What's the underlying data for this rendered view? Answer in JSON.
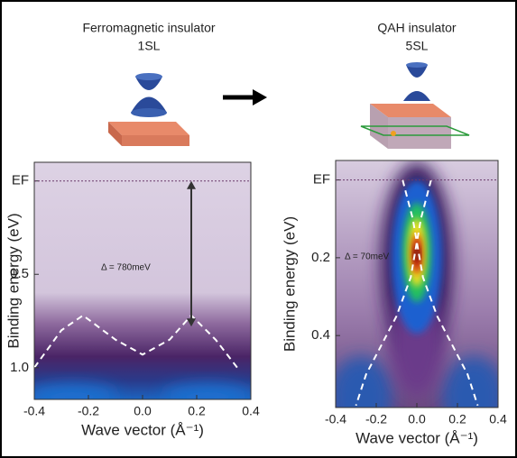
{
  "chart_data": [
    {
      "type": "arpes",
      "title": "Ferromagnetic insulator",
      "subtitle": "1SL",
      "xlabel": "Wave vector (Å⁻¹)",
      "ylabel": "Binding energy (eV)",
      "xlim": [
        -0.4,
        0.4
      ],
      "xticks": [
        -0.4,
        -0.2,
        {
          "value": 0,
          "label": "0.0"
        },
        0.2,
        0.4
      ],
      "ylim": [
        -0.1,
        1.17
      ],
      "y_inverted": true,
      "yticks": [
        {
          "value": 0,
          "label": "EF"
        },
        0.5,
        {
          "value": 1,
          "label": "1.0"
        }
      ],
      "annotation": "Δ = 780meV",
      "gap_arrow": {
        "x": 0.18,
        "y": [
          0,
          0.78
        ]
      },
      "series": [
        {
          "color": "#ffffff",
          "x": [
            -0.4,
            -0.3,
            -0.22,
            -0.1,
            0,
            0.1,
            0.18,
            0.27,
            0.35
          ],
          "values": [
            1.0,
            0.8,
            0.72,
            0.85,
            0.93,
            0.85,
            0.72,
            0.85,
            1.0
          ]
        }
      ]
    },
    {
      "type": "arpes",
      "title": "QAH insulator",
      "subtitle": "5SL",
      "xlabel": "Wave vector (Å⁻¹)",
      "ylabel": "Binding energy (eV)",
      "xlim": [
        -0.4,
        0.4
      ],
      "xticks": [
        -0.4,
        -0.2,
        {
          "value": 0,
          "label": "0.0"
        },
        0.2,
        0.4
      ],
      "ylim": [
        -0.05,
        0.585
      ],
      "y_inverted": true,
      "yticks": [
        {
          "value": 0,
          "label": "EF"
        },
        0.2,
        0.4
      ],
      "annotation": "Δ = 70meV",
      "series": [
        {
          "color": "#ffffff",
          "x": [
            -0.07,
            -0.02,
            0.03,
            0.1,
            0.25,
            0.3
          ],
          "values": [
            0,
            0.1,
            0.25,
            0.35,
            0.5,
            0.58
          ]
        },
        {
          "color": "#ffffff",
          "x": [
            0.07,
            0.02,
            -0.03,
            -0.1,
            -0.25,
            -0.3
          ],
          "values": [
            0,
            0.1,
            0.25,
            0.35,
            0.5,
            0.58
          ]
        }
      ]
    }
  ]
}
